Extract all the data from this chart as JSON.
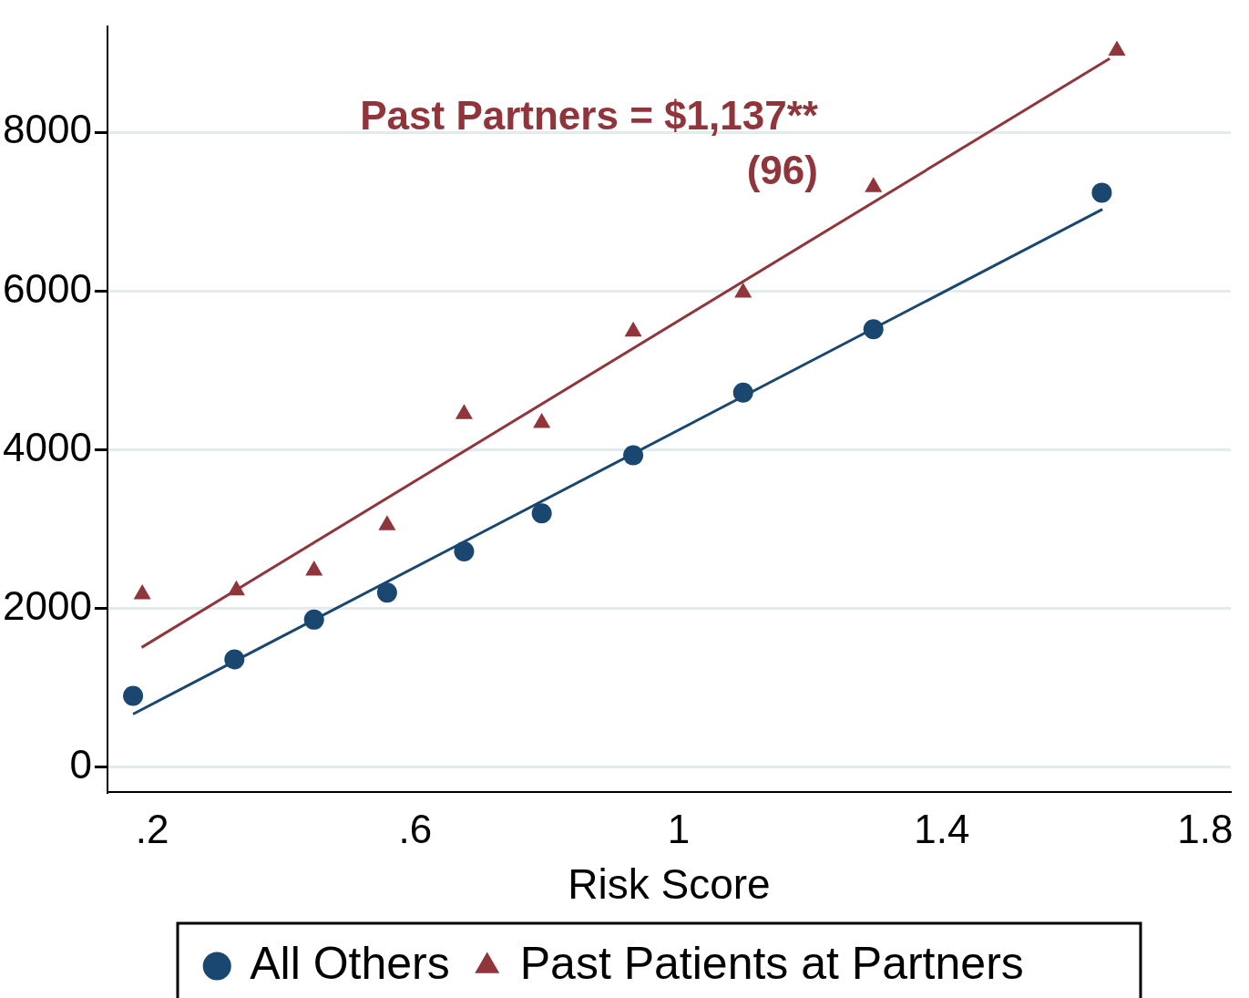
{
  "chart_data": {
    "type": "scatter",
    "xlabel": "Risk Score",
    "annotations": [
      "Past Partners = $1,137**",
      "(96)"
    ],
    "xlim": [
      0.132,
      1.839
    ],
    "xticks": [
      {
        "value": 0.2,
        "label": ".2"
      },
      {
        "value": 0.6,
        "label": ".6"
      },
      1,
      1.4,
      1.8
    ],
    "ylim": [
      -312,
      9330
    ],
    "yticks": [
      0,
      2000,
      4000,
      6000,
      8000
    ],
    "grid": "y",
    "legend": "bottom",
    "series": [
      {
        "name": "All Others",
        "marker": "circle",
        "color": "#1a476f",
        "x": [
          0.171,
          0.325,
          0.446,
          0.557,
          0.674,
          0.792,
          0.931,
          1.098,
          1.296,
          1.643
        ],
        "values": [
          900,
          1360,
          1860,
          2200,
          2720,
          3200,
          3930,
          4720,
          5520,
          7240
        ]
      },
      {
        "name": "Past Patients at Partners",
        "marker": "triangle",
        "color": "#90353b",
        "x": [
          0.185,
          0.328,
          0.446,
          0.557,
          0.674,
          0.792,
          0.931,
          1.098,
          1.296,
          1.666
        ],
        "values": [
          2180,
          2230,
          2480,
          3050,
          4450,
          4340,
          5490,
          5980,
          7310,
          9030
        ]
      },
      {
        "type": "line",
        "marker": "none",
        "color": "#1a476f",
        "x": [
          0.171,
          1.644
        ],
        "values": [
          670,
          7030
        ]
      },
      {
        "type": "line",
        "marker": "none",
        "color": "#90353b",
        "x": [
          0.184,
          1.655
        ],
        "values": [
          1510,
          8930
        ]
      }
    ]
  }
}
